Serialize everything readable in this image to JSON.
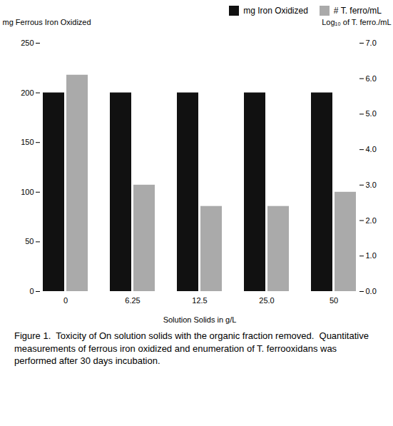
{
  "chart_data": {
    "type": "bar",
    "xlabel": "Solution Solids in g/L",
    "ylabel": "mg Ferrous Iron Oxidized",
    "y2label": "Log₁₀ of T. ferro./mL",
    "categories": [
      "0",
      "6.25",
      "12.5",
      "25.0",
      "50"
    ],
    "series": [
      {
        "name": "mg Iron Oxidized",
        "color": "#111111",
        "values": [
          200,
          200,
          200,
          200,
          200
        ]
      },
      {
        "name": "# T. ferro/mL",
        "color": "#aaaaaa",
        "values": [
          6.1,
          3.0,
          2.4,
          2.4,
          2.8
        ],
        "axis": "y2"
      }
    ],
    "ylim": [
      0,
      250
    ],
    "yticks": [
      0,
      50,
      100,
      150,
      200,
      250
    ],
    "y2lim": [
      0,
      7
    ],
    "y2ticks": [
      0,
      1,
      2,
      3,
      4,
      5,
      6,
      7
    ],
    "legend": "upper right",
    "grid": false,
    "caption": "Figure 1.  Toxicity of On solution solids with the organic fraction removed.  Quantitative measurements of ferrous iron oxidized and enumeration of T. ferrooxidans was performed after 30 days incubation."
  }
}
